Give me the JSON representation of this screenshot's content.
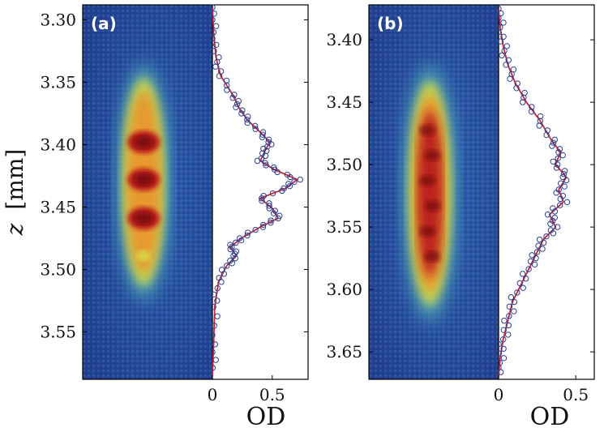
{
  "colors": {
    "fit_line": "#cc2233",
    "marker": "#2a3f8f",
    "frame": "#000000"
  },
  "ylabel": {
    "var": "z",
    "unit": "[mm]"
  },
  "panels": [
    {
      "label": "(a)",
      "z_range": [
        3.288,
        3.588
      ],
      "z_ticks": [
        "3.30",
        "3.35",
        "3.40",
        "3.45",
        "3.50",
        "3.55"
      ],
      "od_ticks": [
        "0",
        "0.5"
      ],
      "od_range": [
        0,
        0.8
      ],
      "xlabel": "OD",
      "cloud": {
        "center_z": 3.43,
        "half_len_z": 0.085,
        "peaks": [
          3.398,
          3.428,
          3.459,
          3.489
        ]
      }
    },
    {
      "label": "(b)",
      "z_range": [
        3.372,
        3.672
      ],
      "z_ticks": [
        "3.40",
        "3.45",
        "3.50",
        "3.55",
        "3.60",
        "3.65"
      ],
      "od_ticks": [
        "0",
        "0.5"
      ],
      "od_range": [
        0,
        0.62
      ],
      "xlabel": "OD",
      "cloud": {
        "center_z": 3.523,
        "half_len_z": 0.092,
        "peaks": []
      }
    }
  ],
  "chart_data": [
    {
      "type": "line",
      "panel": "(a)",
      "x_axis": "OD",
      "y_axis": "z [mm]",
      "z_range": [
        3.288,
        3.588
      ],
      "od_range": [
        0,
        0.8
      ],
      "series": [
        {
          "values": [
            {
              "z": 3.29,
              "od": 0.0
            },
            {
              "z": 3.31,
              "od": 0.01
            },
            {
              "z": 3.33,
              "od": 0.03
            },
            {
              "z": 3.345,
              "od": 0.07
            },
            {
              "z": 3.36,
              "od": 0.17
            },
            {
              "z": 3.37,
              "od": 0.22
            },
            {
              "z": 3.38,
              "od": 0.29
            },
            {
              "z": 3.39,
              "od": 0.4
            },
            {
              "z": 3.398,
              "od": 0.48
            },
            {
              "z": 3.405,
              "od": 0.44
            },
            {
              "z": 3.413,
              "od": 0.4
            },
            {
              "z": 3.42,
              "od": 0.52
            },
            {
              "z": 3.428,
              "od": 0.71
            },
            {
              "z": 3.435,
              "od": 0.61
            },
            {
              "z": 3.443,
              "od": 0.4
            },
            {
              "z": 3.451,
              "od": 0.5
            },
            {
              "z": 3.459,
              "od": 0.55
            },
            {
              "z": 3.466,
              "od": 0.4
            },
            {
              "z": 3.475,
              "od": 0.24
            },
            {
              "z": 3.482,
              "od": 0.15
            },
            {
              "z": 3.489,
              "od": 0.2
            },
            {
              "z": 3.497,
              "od": 0.12
            },
            {
              "z": 3.51,
              "od": 0.05
            },
            {
              "z": 3.53,
              "od": 0.02
            },
            {
              "z": 3.56,
              "od": 0.01
            },
            {
              "z": 3.585,
              "od": 0.0
            }
          ]
        }
      ]
    },
    {
      "type": "line",
      "panel": "(b)",
      "x_axis": "OD",
      "y_axis": "z [mm]",
      "z_range": [
        3.372,
        3.672
      ],
      "od_range": [
        0,
        0.62
      ],
      "series": [
        {
          "values": [
            {
              "z": 3.375,
              "od": 0.0
            },
            {
              "z": 3.39,
              "od": 0.01
            },
            {
              "z": 3.405,
              "od": 0.03
            },
            {
              "z": 3.42,
              "od": 0.06
            },
            {
              "z": 3.435,
              "od": 0.11
            },
            {
              "z": 3.45,
              "od": 0.18
            },
            {
              "z": 3.465,
              "od": 0.27
            },
            {
              "z": 3.48,
              "od": 0.34
            },
            {
              "z": 3.49,
              "od": 0.4
            },
            {
              "z": 3.5,
              "od": 0.37
            },
            {
              "z": 3.51,
              "od": 0.44
            },
            {
              "z": 3.52,
              "od": 0.39
            },
            {
              "z": 3.53,
              "od": 0.42
            },
            {
              "z": 3.54,
              "od": 0.33
            },
            {
              "z": 3.55,
              "od": 0.37
            },
            {
              "z": 3.56,
              "od": 0.29
            },
            {
              "z": 3.57,
              "od": 0.25
            },
            {
              "z": 3.58,
              "od": 0.21
            },
            {
              "z": 3.595,
              "od": 0.15
            },
            {
              "z": 3.61,
              "od": 0.09
            },
            {
              "z": 3.625,
              "od": 0.06
            },
            {
              "z": 3.64,
              "od": 0.03
            },
            {
              "z": 3.655,
              "od": 0.01
            },
            {
              "z": 3.67,
              "od": 0.0
            }
          ]
        }
      ]
    }
  ]
}
